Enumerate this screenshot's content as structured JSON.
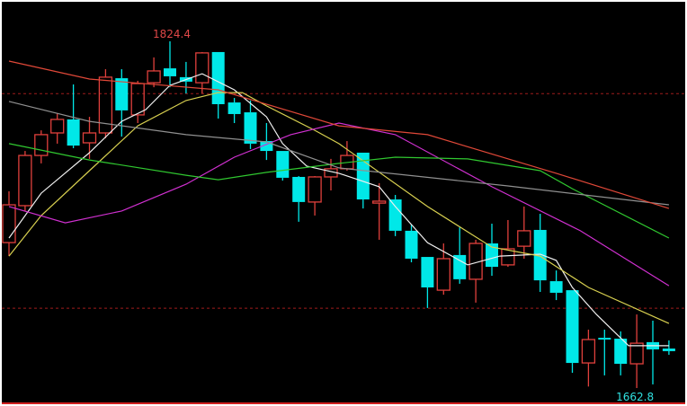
{
  "chart_data": {
    "type": "candlestick",
    "title": "",
    "background": "#000000",
    "colors": {
      "up": "#e0403c",
      "down": "#00e8e8",
      "ref_line": "#a01c1c"
    },
    "ylim": [
      1658,
      1835
    ],
    "reference_lines": [
      1800,
      1700
    ],
    "annotations": {
      "high_label": "1824.4",
      "low_label": "1662.8",
      "high_index": 10,
      "low_index": 39
    },
    "candles": [
      [
        1730.6,
        1754.5,
        1724.3,
        1748.2
      ],
      [
        1747.8,
        1773.3,
        1745.3,
        1771.2
      ],
      [
        1771.2,
        1782.9,
        1767.5,
        1780.9
      ],
      [
        1781.7,
        1790.9,
        1776.7,
        1788.0
      ],
      [
        1788.0,
        1804.3,
        1774.6,
        1775.8
      ],
      [
        1777.1,
        1789.2,
        1769.6,
        1781.7
      ],
      [
        1781.7,
        1811.4,
        1779.2,
        1807.7
      ],
      [
        1807.2,
        1811.4,
        1780.0,
        1792.2
      ],
      [
        1790.1,
        1806.0,
        1786.3,
        1804.7
      ],
      [
        1805.1,
        1816.9,
        1803.0,
        1810.6
      ],
      [
        1811.8,
        1824.4,
        1803.0,
        1808.1
      ],
      [
        1807.7,
        1814.8,
        1800.1,
        1805.6
      ],
      [
        1805.1,
        1819.4,
        1800.1,
        1819.0
      ],
      [
        1819.4,
        1819.4,
        1788.4,
        1795.1
      ],
      [
        1795.9,
        1798.0,
        1786.3,
        1790.5
      ],
      [
        1791.3,
        1796.8,
        1774.2,
        1776.7
      ],
      [
        1777.9,
        1786.3,
        1769.1,
        1773.3
      ],
      [
        1773.3,
        1773.3,
        1759.5,
        1760.8
      ],
      [
        1761.2,
        1761.6,
        1740.3,
        1749.5
      ],
      [
        1749.5,
        1761.6,
        1743.2,
        1761.2
      ],
      [
        1761.2,
        1769.6,
        1754.9,
        1765.0
      ],
      [
        1765.0,
        1777.9,
        1764.1,
        1771.2
      ],
      [
        1772.5,
        1772.5,
        1746.5,
        1750.7
      ],
      [
        1749.0,
        1758.3,
        1731.9,
        1749.9
      ],
      [
        1750.7,
        1752.8,
        1733.6,
        1736.1
      ],
      [
        1736.1,
        1739.0,
        1721.4,
        1723.1
      ],
      [
        1723.9,
        1723.9,
        1700.1,
        1709.7
      ],
      [
        1708.4,
        1730.2,
        1706.3,
        1723.1
      ],
      [
        1724.8,
        1737.7,
        1711.4,
        1713.5
      ],
      [
        1713.5,
        1731.9,
        1702.6,
        1730.2
      ],
      [
        1730.2,
        1739.4,
        1715.1,
        1719.3
      ],
      [
        1720.2,
        1741.1,
        1719.3,
        1727.7
      ],
      [
        1728.9,
        1747.4,
        1723.1,
        1736.1
      ],
      [
        1736.5,
        1744.0,
        1707.6,
        1713.0
      ],
      [
        1712.6,
        1717.6,
        1703.8,
        1707.2
      ],
      [
        1708.4,
        1708.4,
        1669.9,
        1674.5
      ],
      [
        1674.5,
        1690.0,
        1663.5,
        1685.4
      ],
      [
        1686.2,
        1690.0,
        1668.7,
        1685.4
      ],
      [
        1685.8,
        1689.2,
        1668.7,
        1674.1
      ],
      [
        1674.1,
        1697.1,
        1662.8,
        1683.7
      ],
      [
        1684.2,
        1694.2,
        1664.5,
        1680.8
      ],
      [
        1681.2,
        1685.0,
        1678.3,
        1680.0
      ]
    ],
    "candle_fields": [
      "open",
      "high",
      "low",
      "close"
    ],
    "moving_averages": [
      {
        "color": "#f0f0f0",
        "points": [
          [
            0,
            1732.7
          ],
          [
            2,
            1753.6
          ],
          [
            5,
            1772.5
          ],
          [
            7,
            1787.1
          ],
          [
            8.5,
            1792.6
          ],
          [
            10,
            1803.9
          ],
          [
            12,
            1809.3
          ],
          [
            14,
            1801.8
          ],
          [
            16,
            1789.2
          ],
          [
            17,
            1776.7
          ],
          [
            18.5,
            1766.2
          ],
          [
            20.5,
            1762.9
          ],
          [
            23,
            1756.6
          ],
          [
            24,
            1747.4
          ],
          [
            26,
            1730.6
          ],
          [
            28.5,
            1720.2
          ],
          [
            30.5,
            1724.3
          ],
          [
            33,
            1725.2
          ],
          [
            34,
            1722.3
          ],
          [
            35,
            1709.7
          ],
          [
            36.5,
            1697.1
          ],
          [
            38.5,
            1682.5
          ],
          [
            41,
            1682.5
          ]
        ]
      },
      {
        "color": "#d8d050",
        "points": [
          [
            0,
            1724.3
          ],
          [
            2,
            1743.2
          ],
          [
            5,
            1764.1
          ],
          [
            8,
            1785.0
          ],
          [
            11,
            1796.8
          ],
          [
            13,
            1800.5
          ],
          [
            14.5,
            1800.5
          ],
          [
            16,
            1794.3
          ],
          [
            19,
            1782.9
          ],
          [
            20.5,
            1776.7
          ],
          [
            26,
            1747.4
          ],
          [
            30,
            1728.5
          ],
          [
            33,
            1724.3
          ],
          [
            36,
            1709.7
          ],
          [
            41,
            1692.9
          ]
        ]
      },
      {
        "color": "#d030d0",
        "points": [
          [
            0,
            1747.4
          ],
          [
            3.5,
            1739.8
          ],
          [
            7,
            1745.3
          ],
          [
            11,
            1757.8
          ],
          [
            14,
            1770.4
          ],
          [
            17.5,
            1780.9
          ],
          [
            20.5,
            1786.3
          ],
          [
            24,
            1780.9
          ],
          [
            30,
            1756.6
          ],
          [
            35.5,
            1736.1
          ],
          [
            41,
            1710.5
          ]
        ]
      },
      {
        "color": "#30c830",
        "points": [
          [
            0,
            1776.7
          ],
          [
            5,
            1769.1
          ],
          [
            11,
            1762.0
          ],
          [
            13,
            1759.9
          ],
          [
            16,
            1763.3
          ],
          [
            20.5,
            1767.5
          ],
          [
            24,
            1770.4
          ],
          [
            28.5,
            1769.6
          ],
          [
            33,
            1764.1
          ],
          [
            35,
            1755.7
          ],
          [
            41,
            1732.7
          ]
        ]
      },
      {
        "color": "#909090",
        "points": [
          [
            0,
            1796.4
          ],
          [
            5,
            1787.1
          ],
          [
            11,
            1780.9
          ],
          [
            16,
            1777.5
          ],
          [
            20.5,
            1765.4
          ],
          [
            31,
            1757.0
          ],
          [
            41,
            1748.2
          ]
        ]
      },
      {
        "color": "#e04838",
        "points": [
          [
            0,
            1815.2
          ],
          [
            5,
            1806.8
          ],
          [
            13,
            1801.8
          ],
          [
            20.5,
            1785.0
          ],
          [
            26,
            1780.9
          ],
          [
            34,
            1762.9
          ],
          [
            41,
            1746.5
          ]
        ]
      }
    ]
  }
}
